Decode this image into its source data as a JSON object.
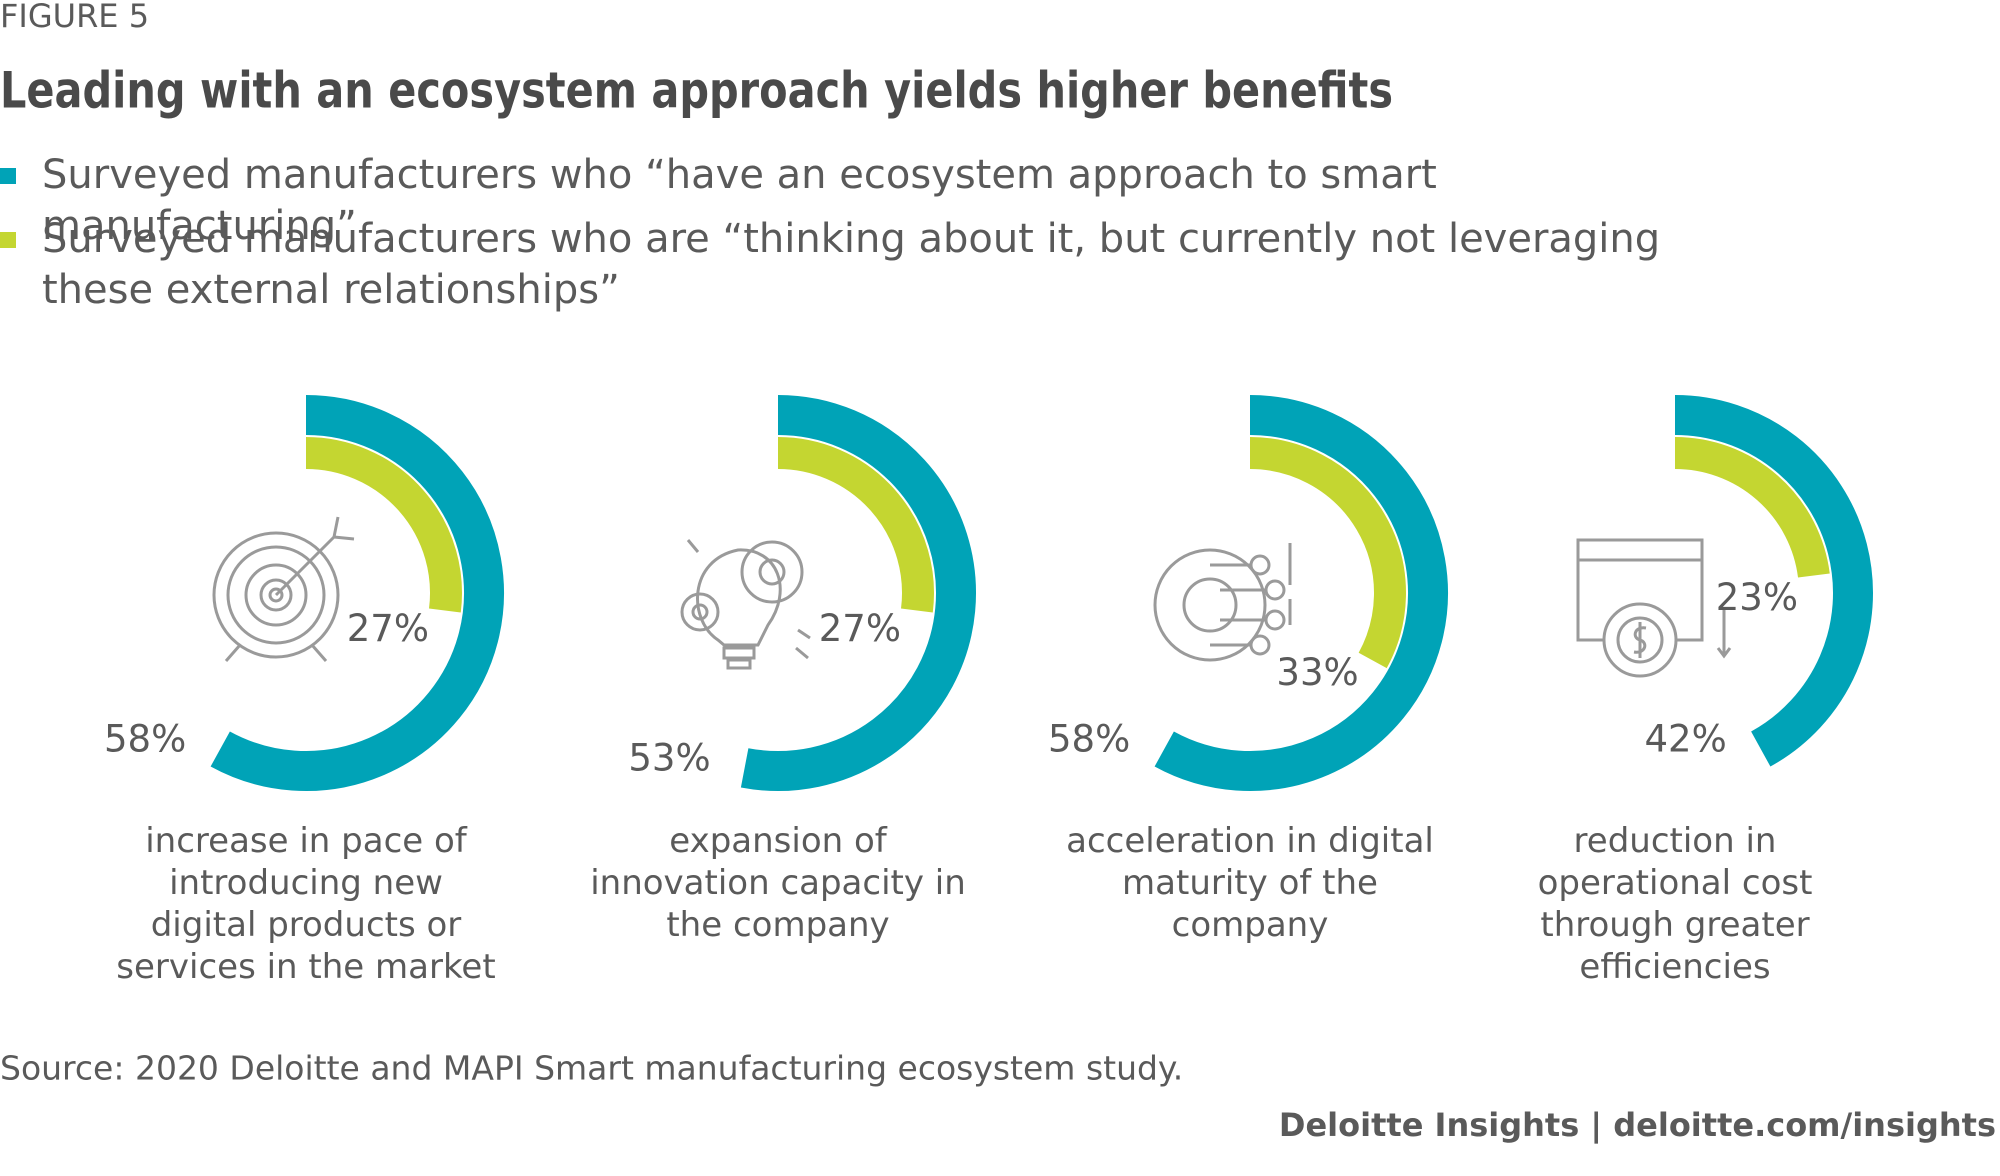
{
  "chart_data": {
    "type": "radial-bar",
    "figure_label": "FIGURE 5",
    "title": "Leading with an ecosystem approach yields higher benefits",
    "categories": [
      "increase in pace of introducing new digital products or services in the market",
      "expansion of innovation capacity in the company",
      "acceleration in digital maturity of the company",
      "reduction in operational cost through greater efficiencies"
    ],
    "series": [
      {
        "name": "Surveyed manufacturers who “have an ecosystem approach to smart manufacturing”",
        "color": "#00a3b7",
        "values": [
          58,
          53,
          58,
          42
        ],
        "value_labels": [
          "58%",
          "53%",
          "58%",
          "42%"
        ]
      },
      {
        "name": "Surveyed manufacturers who are “thinking about it, but currently not leveraging these external relationships”",
        "color": "#c4d631",
        "values": [
          27,
          27,
          33,
          23
        ],
        "value_labels": [
          "27%",
          "27%",
          "33%",
          "23%"
        ]
      }
    ],
    "thetalim": [
      0,
      100
    ],
    "source": "Source: 2020 Deloitte and MAPI Smart manufacturing ecosystem study.",
    "credit": "Deloitte Insights | deloitte.com/insights"
  }
}
